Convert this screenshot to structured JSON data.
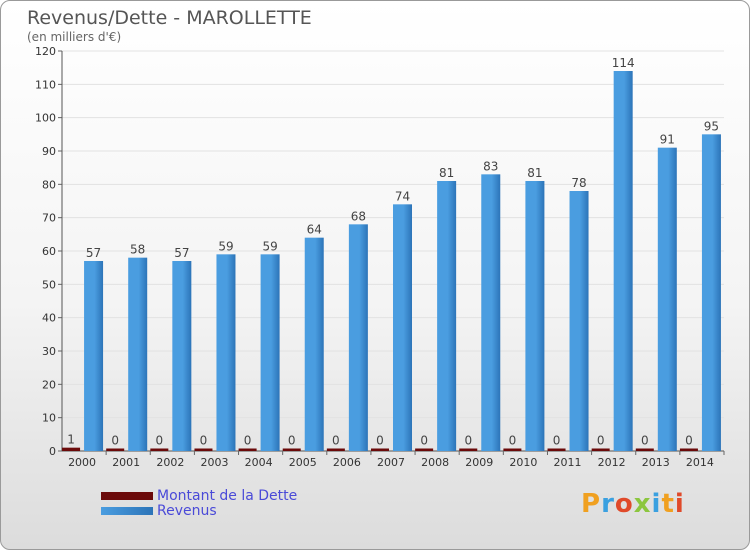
{
  "title": "Revenus/Dette - MAROLLETTE",
  "subtitle": "(en milliers d'€)",
  "logo_text": "Proxiti",
  "colors": {
    "dette": "#6b0a0a",
    "revenus": "#4a9de0",
    "revenus_dark": "#2c74b8"
  },
  "chart_data": {
    "type": "bar",
    "title": "Revenus/Dette - MAROLLETTE",
    "ylabel": "(en milliers d'€)",
    "ylim": [
      0,
      120
    ],
    "yticks": [
      0,
      10,
      20,
      30,
      40,
      50,
      60,
      70,
      80,
      90,
      100,
      110,
      120
    ],
    "grid": true,
    "legend_position": "bottom-left",
    "categories": [
      "2000",
      "2001",
      "2002",
      "2003",
      "2004",
      "2005",
      "2006",
      "2007",
      "2008",
      "2009",
      "2010",
      "2011",
      "2012",
      "2013",
      "2014"
    ],
    "series": [
      {
        "name": "Montant de la Dette",
        "values": [
          1,
          0,
          0,
          0,
          0,
          0,
          0,
          0,
          0,
          0,
          0,
          0,
          0,
          0,
          0
        ]
      },
      {
        "name": "Revenus",
        "values": [
          57,
          58,
          57,
          59,
          59,
          64,
          68,
          74,
          81,
          83,
          81,
          78,
          114,
          91,
          95
        ]
      }
    ]
  }
}
